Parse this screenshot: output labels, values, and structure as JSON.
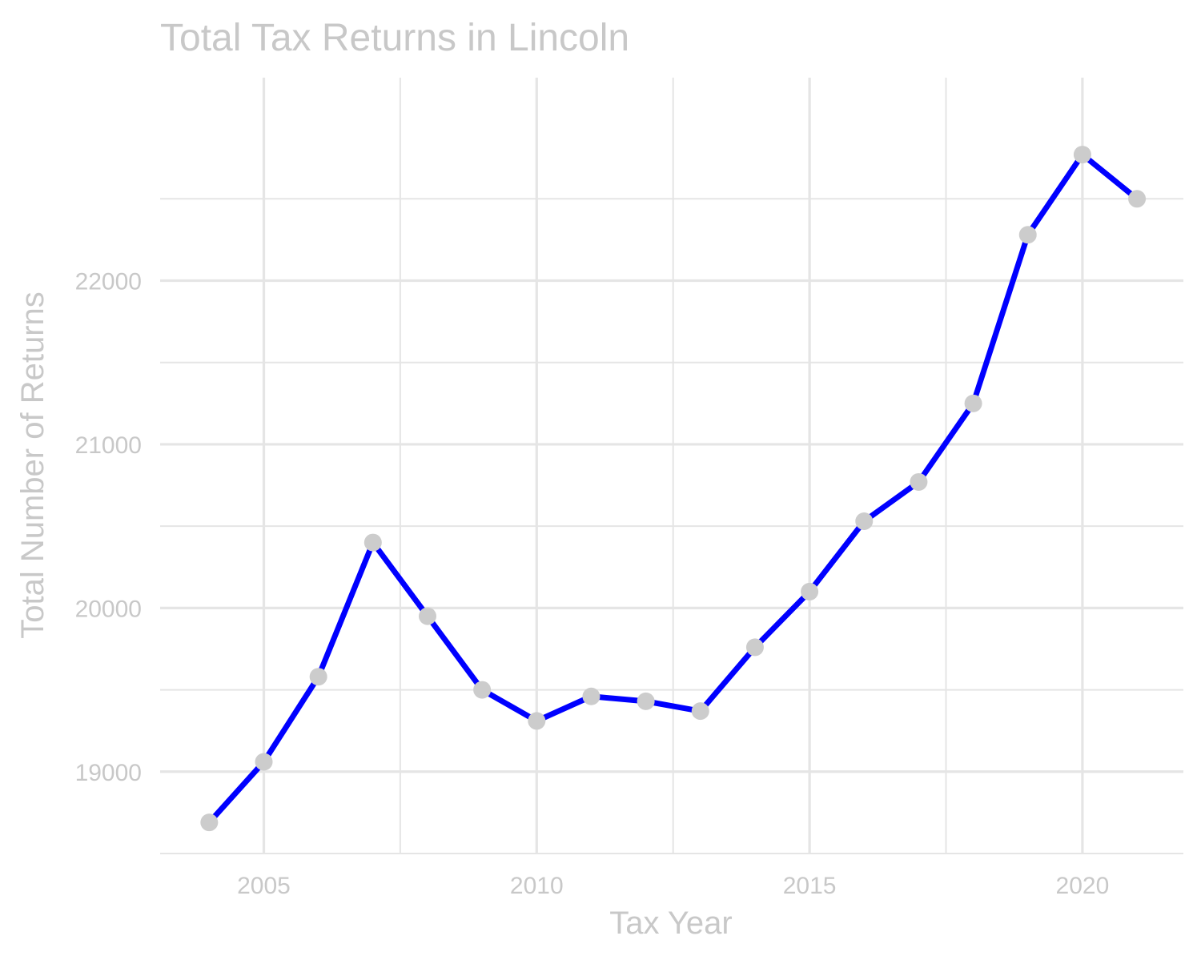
{
  "chart_data": {
    "type": "line",
    "title": "Total Tax Returns in Lincoln",
    "xlabel": "Tax Year",
    "ylabel": "Total Number of Returns",
    "x": [
      2004,
      2005,
      2006,
      2007,
      2008,
      2009,
      2010,
      2011,
      2012,
      2013,
      2014,
      2015,
      2016,
      2017,
      2018,
      2019,
      2020,
      2021
    ],
    "series": [
      {
        "values": [
          18690,
          19060,
          19580,
          20400,
          19950,
          19500,
          19310,
          19460,
          19430,
          19370,
          19760,
          20100,
          20530,
          20770,
          21250,
          22280,
          22770,
          22500
        ]
      }
    ],
    "xlim": [
      2003.1,
      2021.85
    ],
    "ylim": [
      18500,
      23240
    ],
    "x_ticks": [
      2005,
      2010,
      2015,
      2020
    ],
    "y_ticks": [
      19000,
      20000,
      21000,
      22000
    ],
    "x_minor_ticks": [
      2007.5,
      2012.5,
      2017.5
    ],
    "y_minor_ticks": [
      18500,
      19500,
      20500,
      21500,
      22500
    ],
    "grid": true,
    "colors": {
      "line": "#0000ff",
      "points": "#cccccc",
      "grid": "#e5e5e5",
      "text": "#c8c8c8"
    }
  }
}
